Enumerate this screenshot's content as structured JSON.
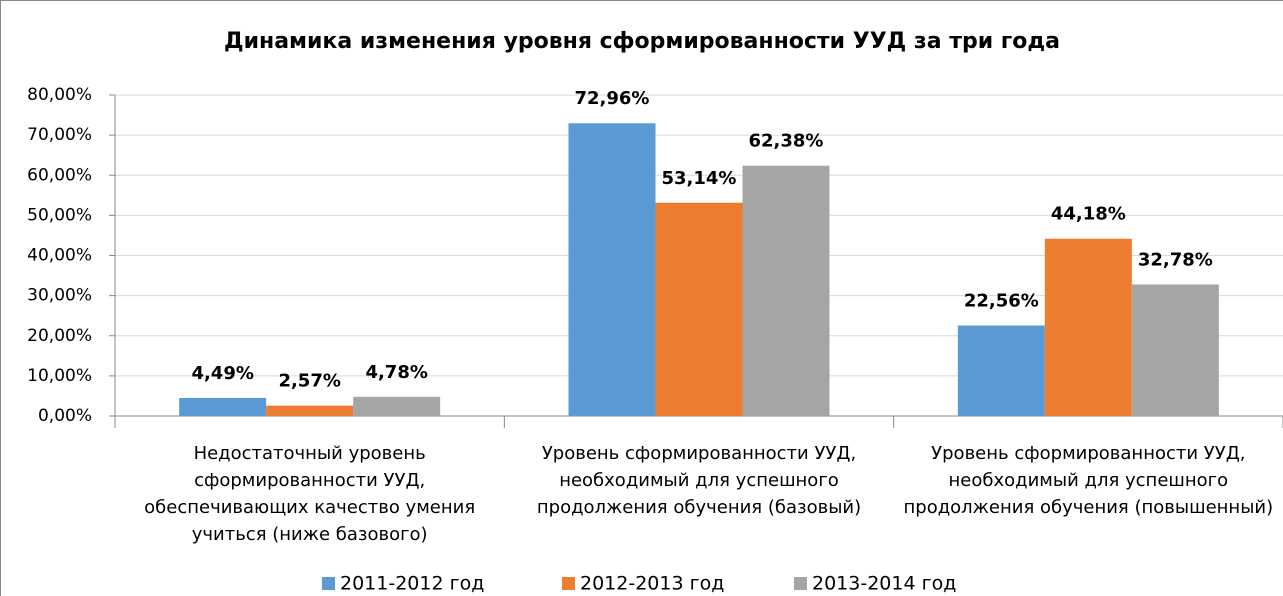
{
  "chart_data": {
    "type": "bar",
    "title": "Динамика изменения уровня сформированности УУД за три года",
    "categories": [
      "Недостаточный уровень сформированности УУД, обеспечивающих качество умения учиться (ниже базового)",
      "Уровень сформированности УУД, необходимый для успешного продолжения обучения (базовый)",
      "Уровень сформированности УУД, необходимый для успешного продолжения обучения (повышенный)"
    ],
    "series": [
      {
        "name": "2011-2012 год",
        "color": "#5b9bd5",
        "values": [
          4.49,
          72.96,
          22.56
        ],
        "value_labels": [
          "4,49%",
          "72,96%",
          "22,56%"
        ]
      },
      {
        "name": "2012-2013 год",
        "color": "#ed7d31",
        "values": [
          2.57,
          53.14,
          44.18
        ],
        "value_labels": [
          "2,57%",
          "53,14%",
          "44,18%"
        ]
      },
      {
        "name": "2013-2014 год",
        "color": "#a5a5a5",
        "values": [
          4.78,
          62.38,
          32.78
        ],
        "value_labels": [
          "4,78%",
          "62,38%",
          "32,78%"
        ]
      }
    ],
    "ylim": [
      0,
      80
    ],
    "yticks": [
      {
        "value": 0,
        "label": "0,00%"
      },
      {
        "value": 10,
        "label": "10,00%"
      },
      {
        "value": 20,
        "label": "20,00%"
      },
      {
        "value": 30,
        "label": "30,00%"
      },
      {
        "value": 40,
        "label": "40,00%"
      },
      {
        "value": 50,
        "label": "50,00%"
      },
      {
        "value": 60,
        "label": "60,00%"
      },
      {
        "value": 70,
        "label": "70,00%"
      },
      {
        "value": 80,
        "label": "80,00%"
      }
    ],
    "grid": true,
    "legend": "bottom"
  }
}
